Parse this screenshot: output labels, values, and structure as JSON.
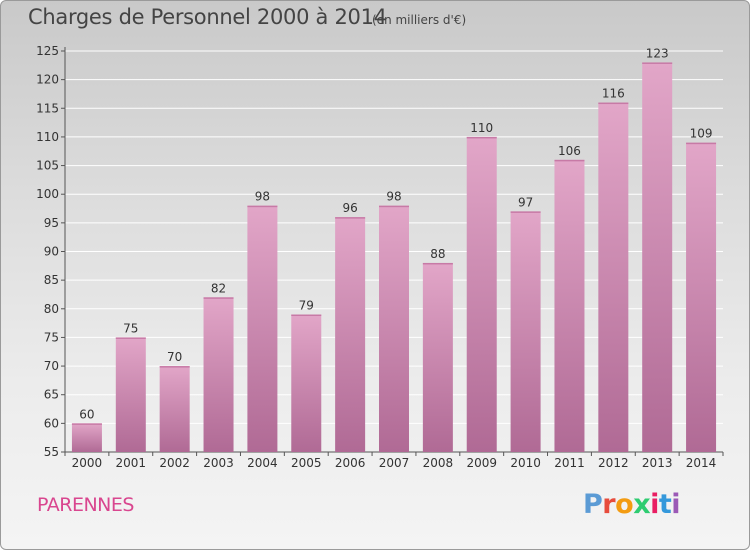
{
  "header": {
    "title": "Charges de Personnel 2000 à 2014",
    "subtitle": "(en milliers d'€)"
  },
  "footer": {
    "commune": "PARENNES",
    "logo": [
      "P",
      "r",
      "o",
      "x",
      "i",
      "t",
      "i"
    ]
  },
  "colors": {
    "bar": "#d98fb8",
    "bar_dark": "#b06a95",
    "commune": "#d9468f",
    "logo": [
      "#5b9bd5",
      "#e74c3c",
      "#f39c12",
      "#2ecc71",
      "#e91e63",
      "#3498db",
      "#9b59b6"
    ]
  },
  "chart_data": {
    "type": "bar",
    "title": "Charges de Personnel 2000 à 2014",
    "subtitle": "(en milliers d'€)",
    "categories": [
      "2000",
      "2001",
      "2002",
      "2003",
      "2004",
      "2005",
      "2006",
      "2007",
      "2008",
      "2009",
      "2010",
      "2011",
      "2012",
      "2013",
      "2014"
    ],
    "values": [
      60,
      75,
      70,
      82,
      98,
      79,
      96,
      98,
      88,
      110,
      97,
      106,
      116,
      123,
      109
    ],
    "ylim": [
      55,
      125
    ],
    "yticks": [
      55,
      60,
      65,
      70,
      75,
      80,
      85,
      90,
      95,
      100,
      105,
      110,
      115,
      120,
      125
    ],
    "grid": true,
    "data_labels": true
  }
}
